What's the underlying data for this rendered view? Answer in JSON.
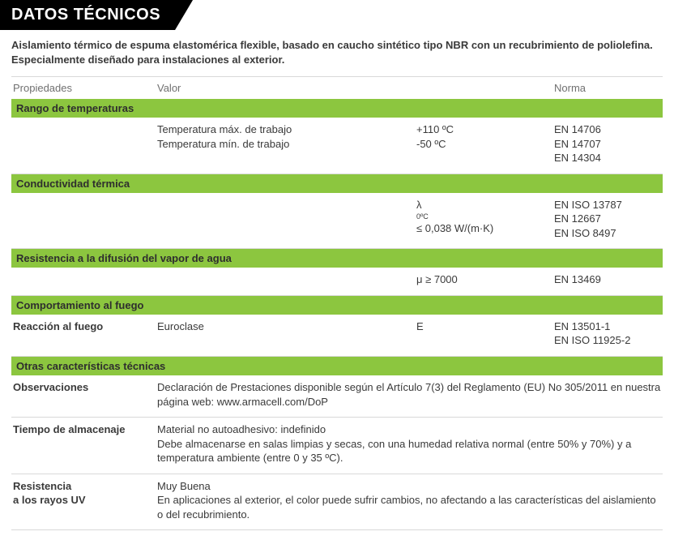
{
  "colors": {
    "banner_bg": "#000000",
    "banner_text": "#ffffff",
    "section_bg": "#8cc63f",
    "section_text": "#2e2e2e",
    "body_text": "#3a3a3a",
    "muted_text": "#707070",
    "border": "#d9d9d9",
    "page_bg": "#ffffff"
  },
  "header": {
    "title": "DATOS TÉCNICOS"
  },
  "intro": "Aislamiento térmico de espuma elastomérica flexible, basado en caucho sintético tipo NBR con un recubrimiento de poliolefina. Especialmente diseñado para instalaciones al exterior.",
  "columns": {
    "c1": "Propiedades",
    "c2": "Valor",
    "c3": "",
    "c4": "Norma"
  },
  "sections": [
    {
      "title": "Rango de temperaturas",
      "rows": [
        {
          "c1": "",
          "c2_lines": [
            "Temperatura máx. de trabajo",
            "Temperatura mín. de trabajo"
          ],
          "c3_lines": [
            "+110 ºC",
            "-50 ºC"
          ],
          "c4_lines": [
            "EN 14706",
            "EN 14707",
            "EN 14304"
          ]
        }
      ]
    },
    {
      "title": "Conductividad térmica",
      "rows": [
        {
          "c1": "",
          "c2_lines": [],
          "c3_html": "λ <span class=\"sub-small\">0ºC</span> ≤ 0,038 W/(m·K)",
          "c4_lines": [
            "EN ISO 13787",
            "EN 12667",
            "EN ISO 8497"
          ]
        }
      ]
    },
    {
      "title": "Resistencia a la difusión del vapor de agua",
      "rows": [
        {
          "c1": "",
          "c2_lines": [],
          "c3_lines": [
            "μ ≥ 7000"
          ],
          "c4_lines": [
            "EN 13469"
          ]
        }
      ]
    },
    {
      "title": "Comportamiento al fuego",
      "rows": [
        {
          "c1": "Reacción al fuego",
          "c2_lines": [
            "Euroclase"
          ],
          "c3_lines": [
            "E"
          ],
          "c4_lines": [
            "EN 13501-1",
            "EN ISO 11925-2"
          ]
        }
      ]
    },
    {
      "title": "Otras características técnicas",
      "rows": [
        {
          "c1": "Observaciones",
          "c2_span": "Declaración de Prestaciones disponible según el Artículo 7(3) del Reglamento (EU) No 305/2011 en nuestra página web: www.armacell.com/DoP"
        },
        {
          "c1": "Tiempo de almacenaje",
          "c2_span_lines": [
            "Material no autoadhesivo: indefinido",
            "Debe almacenarse en salas limpias y secas, con una humedad relativa normal (entre 50% y 70%) y a temperatura ambiente (entre 0 y 35 ºC)."
          ]
        },
        {
          "c1_lines": [
            "Resistencia",
            "a los rayos UV"
          ],
          "c2_span_lines": [
            "Muy Buena",
            "En aplicaciones al exterior, el color puede sufrir cambios, no afectando a las características del aislamiento o del recubrimiento."
          ]
        }
      ]
    }
  ]
}
